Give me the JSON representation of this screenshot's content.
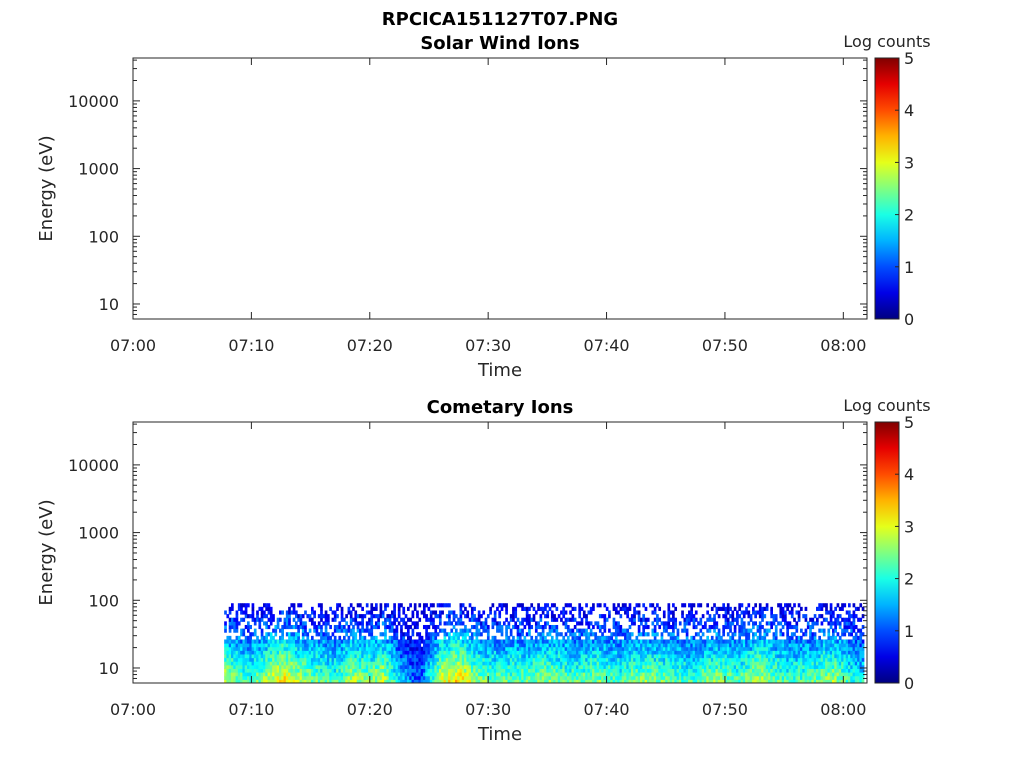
{
  "figure": {
    "title": "RPCICA151127T07.PNG"
  },
  "chart_data": [
    {
      "type": "heatmap",
      "title": "Solar Wind Ions",
      "xlabel": "Time",
      "ylabel": "Energy (eV)",
      "x_ticks": [
        "07:00",
        "07:10",
        "07:20",
        "07:30",
        "07:40",
        "07:50",
        "08:00"
      ],
      "x_range": [
        "07:00",
        "08:02"
      ],
      "y_scale": "log",
      "y_ticks": [
        "10",
        "100",
        "1000",
        "10000"
      ],
      "y_range": [
        6,
        43000
      ],
      "colorbar": {
        "label": "Log counts",
        "ticks": [
          "0",
          "1",
          "2",
          "3",
          "4",
          "5"
        ],
        "range": [
          0,
          5
        ],
        "colormap": "jet"
      },
      "data": "empty"
    },
    {
      "type": "heatmap",
      "title": "Cometary Ions",
      "xlabel": "Time",
      "ylabel": "Energy (eV)",
      "x_ticks": [
        "07:00",
        "07:10",
        "07:20",
        "07:30",
        "07:40",
        "07:50",
        "08:00"
      ],
      "x_range": [
        "07:00",
        "08:02"
      ],
      "y_scale": "log",
      "y_ticks": [
        "10",
        "100",
        "1000",
        "10000"
      ],
      "y_range": [
        6,
        43000
      ],
      "colorbar": {
        "label": "Log counts",
        "ticks": [
          "0",
          "1",
          "2",
          "3",
          "4",
          "5"
        ],
        "range": [
          0,
          5
        ],
        "colormap": "jet"
      },
      "data_start_time": "07:07.7",
      "data_max_energy_eV": 80,
      "typical_log_counts_low_energy": [
        1.5,
        3.2
      ],
      "profile_minutes": [
        7.7,
        9.5,
        11,
        12.5,
        14,
        15.5,
        17,
        18.5,
        20,
        21,
        22.5,
        24,
        26,
        27.5,
        29,
        31,
        33,
        35,
        37,
        39,
        41,
        43,
        45,
        47,
        49,
        51,
        53,
        55,
        57,
        59,
        61,
        62
      ],
      "profile_values": [
        2.8,
        2.2,
        2.6,
        3.3,
        2.7,
        2.4,
        2.2,
        2.8,
        2.5,
        2.9,
        1.6,
        0.9,
        3.0,
        3.3,
        2.5,
        2.3,
        2.4,
        2.6,
        2.3,
        2.5,
        2.2,
        2.6,
        2.4,
        2.2,
        2.6,
        2.3,
        2.8,
        2.2,
        2.3,
        2.7,
        2.0,
        1.8
      ]
    }
  ]
}
